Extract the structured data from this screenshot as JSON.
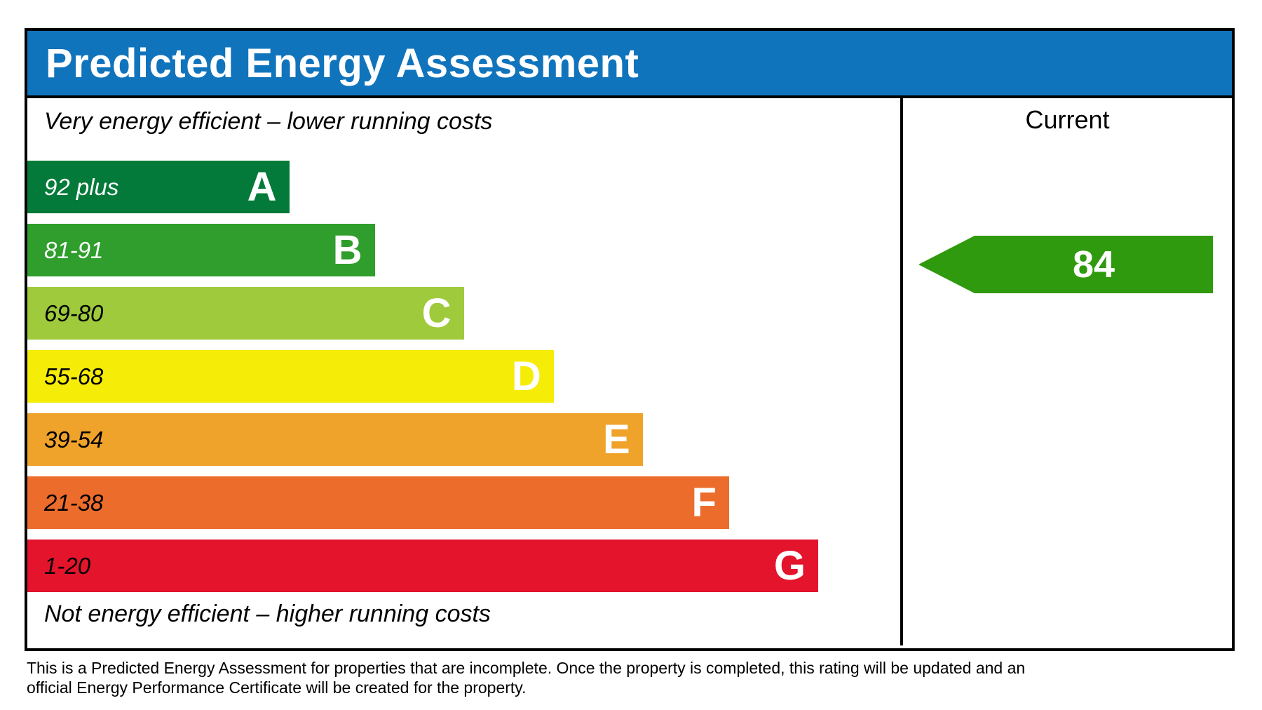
{
  "header": {
    "title": "Predicted Energy Assessment",
    "bg_color": "#1074bc"
  },
  "chart": {
    "top_caption": "Very energy efficient – lower running costs",
    "bottom_caption": "Not energy efficient – higher running costs",
    "bands": [
      {
        "range": "92 plus",
        "letter": "A",
        "color": "#047a3a",
        "label_color": "#ffffff",
        "width_pct": 30.0
      },
      {
        "range": "81-91",
        "letter": "B",
        "color": "#2f9e2c",
        "label_color": "#ffffff",
        "width_pct": 39.8
      },
      {
        "range": "69-80",
        "letter": "C",
        "color": "#9fca3b",
        "label_color": "#000000",
        "width_pct": 50.0
      },
      {
        "range": "55-68",
        "letter": "D",
        "color": "#f5ec08",
        "label_color": "#000000",
        "width_pct": 60.3
      },
      {
        "range": "39-54",
        "letter": "E",
        "color": "#f0a32a",
        "label_color": "#000000",
        "width_pct": 70.5
      },
      {
        "range": "21-38",
        "letter": "F",
        "color": "#ec6c2c",
        "label_color": "#000000",
        "width_pct": 80.4
      },
      {
        "range": "1-20",
        "letter": "G",
        "color": "#e3142c",
        "label_color": "#000000",
        "width_pct": 90.6
      }
    ]
  },
  "current_panel": {
    "label": "Current",
    "value": "84",
    "arrow_color": "#2f9a0e"
  },
  "footer": {
    "line1": "This is a Predicted Energy Assessment for properties that are incomplete. Once the property is completed, this rating will be updated and an",
    "line2": "official Energy Performance Certificate will be created for the property."
  },
  "chart_data": {
    "type": "bar",
    "title": "Predicted Energy Assessment",
    "categories": [
      "A",
      "B",
      "C",
      "D",
      "E",
      "F",
      "G"
    ],
    "band_score_ranges": [
      "92 plus",
      "81-91",
      "69-80",
      "55-68",
      "39-54",
      "21-38",
      "1-20"
    ],
    "bar_relative_widths_pct": [
      30.0,
      39.8,
      50.0,
      60.3,
      70.5,
      80.4,
      90.6
    ],
    "bar_colors": [
      "#047a3a",
      "#2f9e2c",
      "#9fca3b",
      "#f5ec08",
      "#f0a32a",
      "#ec6c2c",
      "#e3142c"
    ],
    "annotations": [
      "Very energy efficient – lower running costs",
      "Not energy efficient – higher running costs"
    ],
    "series": [
      {
        "name": "Current",
        "values": [
          84
        ],
        "band": "B",
        "marker": "left-pointing-arrow",
        "color": "#2f9a0e"
      }
    ],
    "legend_position": "right-column-header",
    "grid": false
  }
}
